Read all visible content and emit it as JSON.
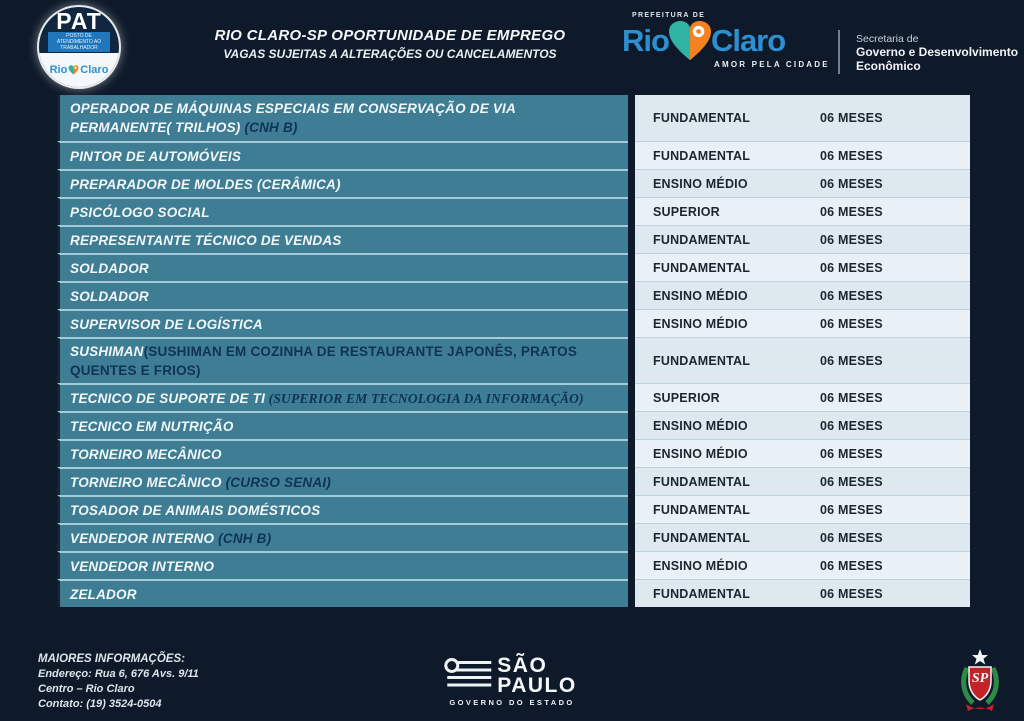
{
  "header": {
    "pat_logo": {
      "acronym": "PAT",
      "banner": "POSTO DE ATENDIMENTO AO TRABALHADOR",
      "rio": "Rio",
      "claro": "Claro"
    },
    "title_line1": "RIO CLARO-SP OPORTUNIDADE DE EMPREGO",
    "title_line2": "VAGAS SUJEITAS A ALTERAÇÕES OU CANCELAMENTOS",
    "prefecture": {
      "kicker": "PREFEITURA DE",
      "rio": "Rio",
      "claro": "Claro",
      "tagline": "AMOR PELA CIDADE"
    },
    "secretariat": {
      "line1": "Secretaria de",
      "line2": "Governo e Desenvolvimento",
      "line3": "Econômico"
    }
  },
  "jobs": [
    {
      "title": "OPERADOR DE MÁQUINAS ESPECIAIS EM CONSERVAÇÃO DE VIA PERMANENTE( TRILHOS)",
      "note": " (CNH B)",
      "note_style": "sans-italic",
      "education": "FUNDAMENTAL",
      "duration": "06 MESES",
      "tall": true
    },
    {
      "title": "PINTOR DE AUTOMÓVEIS",
      "note": "",
      "note_style": "",
      "education": "FUNDAMENTAL",
      "duration": "06 MESES",
      "tall": false
    },
    {
      "title": "PREPARADOR DE MOLDES  (CERÂMICA)",
      "note": "",
      "note_style": "",
      "education": "ENSINO MÉDIO",
      "duration": "06 MESES",
      "tall": false
    },
    {
      "title": "PSICÓLOGO SOCIAL",
      "note": "",
      "note_style": "",
      "education": "SUPERIOR",
      "duration": "06 MESES",
      "tall": false
    },
    {
      "title": "REPRESENTANTE  TÉCNICO DE VENDAS",
      "note": "",
      "note_style": "",
      "education": "FUNDAMENTAL",
      "duration": "06 MESES",
      "tall": false
    },
    {
      "title": "SOLDADOR",
      "note": "",
      "note_style": "",
      "education": "FUNDAMENTAL",
      "duration": "06 MESES",
      "tall": false
    },
    {
      "title": "SOLDADOR",
      "note": "",
      "note_style": "",
      "education": "ENSINO MÉDIO",
      "duration": "06 MESES",
      "tall": false
    },
    {
      "title": "SUPERVISOR DE LOGÍSTICA",
      "note": "",
      "note_style": "",
      "education": "ENSINO MÉDIO",
      "duration": "06 MESES",
      "tall": false
    },
    {
      "title": "SUSHIMAN",
      "note": "(SUSHIMAN EM COZINHA DE RESTAURANTE JAPONÊS, PRATOS QUENTES E FRIOS)",
      "note_style": "sans",
      "education": "FUNDAMENTAL",
      "duration": "06 MESES",
      "tall": true
    },
    {
      "title": "TECNICO DE SUPORTE DE TI",
      "note": " (SUPERIOR EM TECNOLOGIA DA INFORMAÇÃO)",
      "note_style": "serif-italic",
      "education": "SUPERIOR",
      "duration": "06 MESES",
      "tall": false
    },
    {
      "title": "TECNICO EM NUTRIÇÃO",
      "note": "",
      "note_style": "",
      "education": "ENSINO MÉDIO",
      "duration": "06 MESES",
      "tall": false
    },
    {
      "title": "TORNEIRO MECÂNICO",
      "note": "",
      "note_style": "",
      "education": "ENSINO MÉDIO",
      "duration": "06 MESES",
      "tall": false
    },
    {
      "title": "TORNEIRO MECÂNICO",
      "note": " (CURSO SENAI)",
      "note_style": "sans-italic",
      "education": "FUNDAMENTAL",
      "duration": "06 MESES",
      "tall": false
    },
    {
      "title": "TOSADOR DE ANIMAIS DOMÉSTICOS",
      "note": "",
      "note_style": "",
      "education": "FUNDAMENTAL",
      "duration": "06 MESES",
      "tall": false
    },
    {
      "title": "VENDEDOR INTERNO",
      "note": " (CNH B)",
      "note_style": "sans-italic",
      "education": "FUNDAMENTAL",
      "duration": "06 MESES",
      "tall": false
    },
    {
      "title": "VENDEDOR INTERNO",
      "note": "",
      "note_style": "",
      "education": "ENSINO MÉDIO",
      "duration": "06 MESES",
      "tall": false
    },
    {
      "title": "ZELADOR",
      "note": "",
      "note_style": "",
      "education": "FUNDAMENTAL",
      "duration": "06 MESES",
      "tall": false
    }
  ],
  "footer": {
    "info": {
      "heading": "MAIORES INFORMAÇÕES:",
      "address": "Endereço: Rua 6, 676 Avs. 9/11",
      "district": "Centro – Rio Claro",
      "contact": "Contato: (19) 3524-0504"
    },
    "sp_logo": {
      "line1": "SÃO",
      "line2": "PAULO",
      "caption": "GOVERNO DO ESTADO"
    },
    "coat_of_arms": {
      "initials": "SP"
    }
  },
  "colors": {
    "background": "#0e1a2a",
    "teal_row": "#3e7d94",
    "light_row_a": "#dde9ef",
    "light_row_b": "#e9f1f6",
    "note_navy": "#0f3356",
    "brand_blue": "#2e8fd0",
    "heart_green": "#2fb3a3",
    "heart_orange": "#f58220"
  }
}
